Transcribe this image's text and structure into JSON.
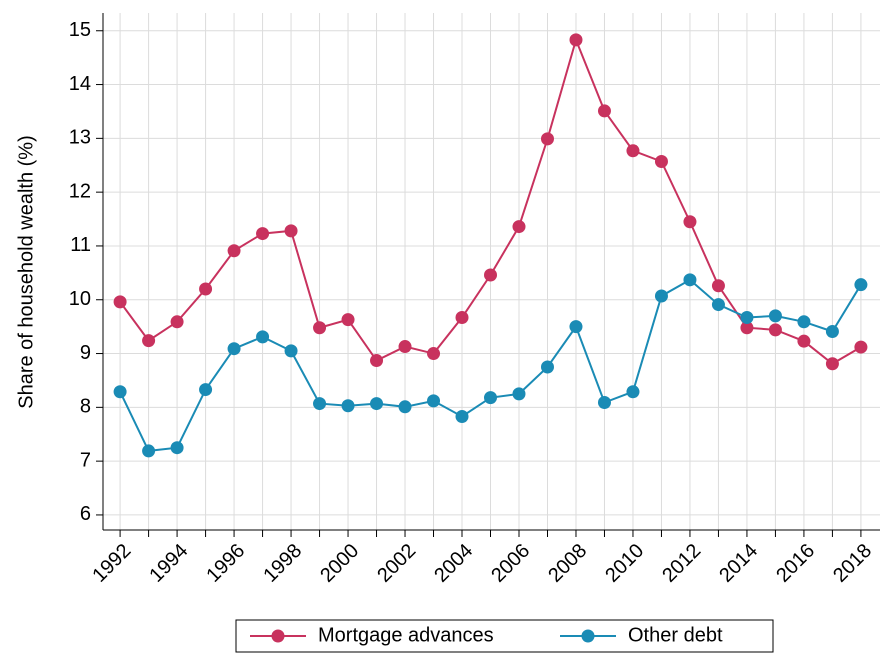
{
  "chart_data": {
    "type": "line",
    "y_label": "Share of household wealth (%)",
    "x": [
      1992,
      1993,
      1994,
      1995,
      1996,
      1997,
      1998,
      1999,
      2000,
      2001,
      2002,
      2003,
      2004,
      2005,
      2006,
      2007,
      2008,
      2009,
      2010,
      2011,
      2012,
      2013,
      2014,
      2015,
      2016,
      2017,
      2018
    ],
    "series": [
      {
        "name": "Mortgage advances",
        "color": "#c8325e",
        "values": [
          9.96,
          9.24,
          9.59,
          10.2,
          10.91,
          11.23,
          11.28,
          9.48,
          9.63,
          8.87,
          9.13,
          9.0,
          9.67,
          10.46,
          11.36,
          12.99,
          14.83,
          13.51,
          12.77,
          12.57,
          11.45,
          10.26,
          9.48,
          9.44,
          9.23,
          8.81,
          9.12
        ]
      },
      {
        "name": "Other debt",
        "color": "#1a8bb5",
        "values": [
          8.29,
          7.19,
          7.25,
          8.33,
          9.09,
          9.31,
          9.05,
          8.07,
          8.03,
          8.07,
          8.01,
          8.12,
          7.83,
          8.18,
          8.25,
          8.75,
          9.5,
          8.09,
          8.29,
          10.07,
          10.37,
          9.91,
          9.67,
          9.7,
          9.59,
          9.41,
          10.28
        ]
      }
    ],
    "xlim": [
      1991.4,
      2018.67
    ],
    "ylim": [
      5.72,
      15.33
    ],
    "xticks": [
      1992,
      1994,
      1996,
      1998,
      2000,
      2002,
      2004,
      2006,
      2008,
      2010,
      2012,
      2014,
      2016,
      2018
    ],
    "xminorticks": [
      1993,
      1995,
      1997,
      1999,
      2001,
      2003,
      2005,
      2007,
      2009,
      2011,
      2013,
      2015,
      2017
    ],
    "yticks": [
      6,
      7,
      8,
      9,
      10,
      11,
      12,
      13,
      14,
      15
    ],
    "grid": true,
    "legend": "bottom"
  }
}
